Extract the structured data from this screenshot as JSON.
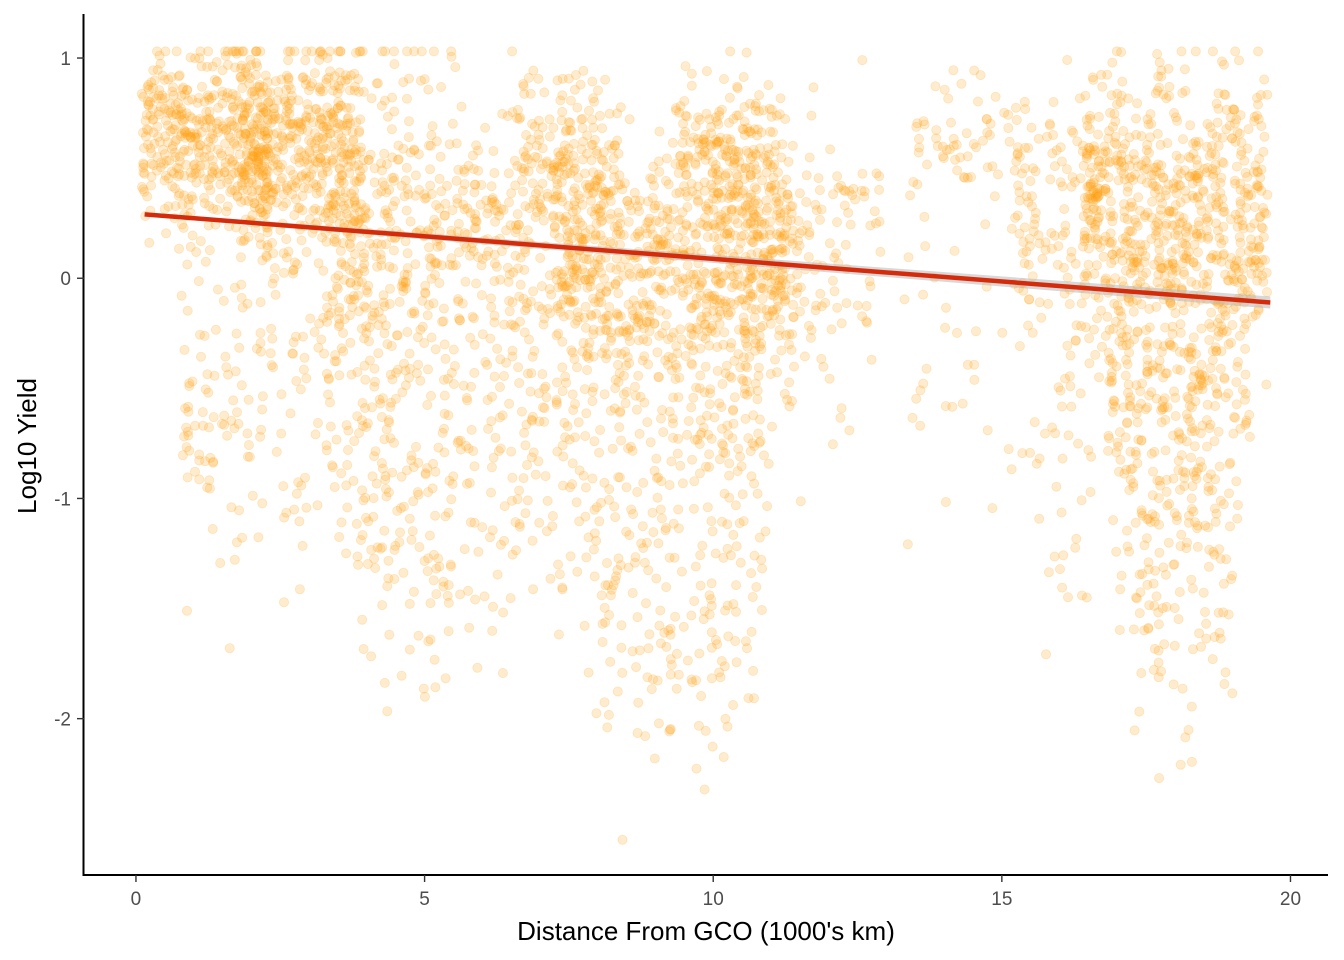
{
  "chart_data": {
    "type": "scatter",
    "title": "",
    "xlabel": "Distance From GCO (1000's km)",
    "ylabel": "Log10 Yield",
    "xlim": [
      -0.9,
      20.65
    ],
    "ylim": [
      -2.71,
      1.2
    ],
    "x_ticks": [
      0,
      5,
      10,
      15,
      20
    ],
    "x_tick_labels": [
      "0",
      "5",
      "10",
      "15",
      "20"
    ],
    "y_ticks": [
      -2,
      -1,
      0,
      1
    ],
    "y_tick_labels": [
      "-2",
      "-1",
      "0",
      "1"
    ],
    "grid": false,
    "legend": "none",
    "colors": {
      "points": "#ffa011",
      "trend": "#d52b0b",
      "confidence_band": "#b8b8b8",
      "axis": "#000000"
    },
    "series": [
      {
        "clusters": [
          {
            "x_range": [
              0.1,
              2.3
            ],
            "center": 0.63,
            "spread": 0.22,
            "count": 430
          },
          {
            "x_range": [
              1.8,
              3.9
            ],
            "center": 0.58,
            "spread": 0.26,
            "count": 460
          },
          {
            "x_range": [
              3.3,
              5.6
            ],
            "center": 0.22,
            "spread": 0.42,
            "count": 330
          },
          {
            "x_range": [
              0.8,
              5.4
            ],
            "center": -0.55,
            "spread": 0.42,
            "count": 260
          },
          {
            "x_range": [
              3.6,
              5.5
            ],
            "center": -1.15,
            "spread": 0.33,
            "count": 90
          },
          {
            "x_range": [
              5.5,
              7.6
            ],
            "center": 0.28,
            "spread": 0.3,
            "count": 200
          },
          {
            "x_range": [
              6.6,
              8.4
            ],
            "center": 0.55,
            "spread": 0.2,
            "count": 130
          },
          {
            "x_range": [
              7.3,
              11.4
            ],
            "center": 0.05,
            "spread": 0.28,
            "count": 760
          },
          {
            "x_range": [
              9.3,
              11.1
            ],
            "center": 0.55,
            "spread": 0.2,
            "count": 200
          },
          {
            "x_range": [
              5.6,
              11.0
            ],
            "center": -0.75,
            "spread": 0.45,
            "count": 420
          },
          {
            "x_range": [
              7.8,
              10.8
            ],
            "center": -1.6,
            "spread": 0.3,
            "count": 110
          },
          {
            "x_range": [
              11.0,
              12.9
            ],
            "center": 0.1,
            "spread": 0.35,
            "count": 130
          },
          {
            "x_range": [
              13.3,
              15.4
            ],
            "center": 0.55,
            "spread": 0.22,
            "count": 70
          },
          {
            "x_range": [
              13.3,
              15.4
            ],
            "center": -0.5,
            "spread": 0.4,
            "count": 30
          },
          {
            "x_range": [
              15.2,
              16.8
            ],
            "center": 0.3,
            "spread": 0.3,
            "count": 120
          },
          {
            "x_range": [
              15.4,
              16.6
            ],
            "center": -0.8,
            "spread": 0.4,
            "count": 40
          },
          {
            "x_range": [
              16.4,
              19.6
            ],
            "center": 0.3,
            "spread": 0.32,
            "count": 680
          },
          {
            "x_range": [
              16.8,
              19.3
            ],
            "center": -0.55,
            "spread": 0.35,
            "count": 300
          },
          {
            "x_range": [
              17.0,
              19.0
            ],
            "center": -1.4,
            "spread": 0.35,
            "count": 110
          }
        ],
        "point_alpha": 0.2
      }
    ],
    "trend_line": {
      "x": [
        0.15,
        19.65
      ],
      "y": [
        0.29,
        -0.11
      ]
    }
  }
}
